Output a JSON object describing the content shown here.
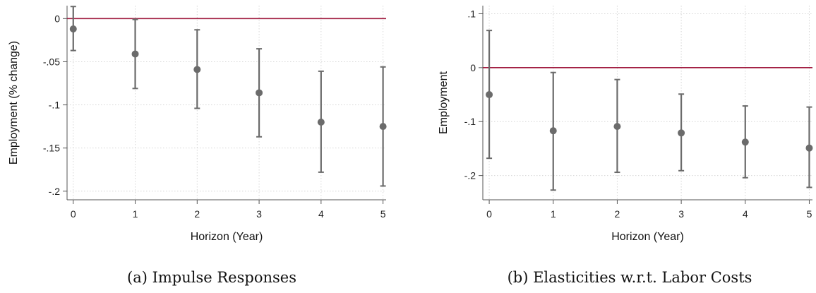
{
  "chart_data": [
    {
      "type": "scatter",
      "subtype": "point-estimates-with-confidence-intervals",
      "caption": "(a) Impulse Responses",
      "xlabel": "Horizon (Year)",
      "ylabel": "Employment (% change)",
      "x_ticks": [
        "0",
        "1",
        "2",
        "3",
        "4",
        "5"
      ],
      "y_ticks": [
        {
          "value": 0,
          "label": "0"
        },
        {
          "value": -0.05,
          "label": "-.05"
        },
        {
          "value": -0.1,
          "label": "-.1"
        },
        {
          "value": -0.15,
          "label": "-.15"
        },
        {
          "value": -0.2,
          "label": "-.2"
        }
      ],
      "xlim": [
        -0.1,
        5.05
      ],
      "ylim": [
        -0.21,
        0.015
      ],
      "grid": true,
      "reference_line": 0,
      "x": [
        0,
        1,
        2,
        3,
        4,
        5
      ],
      "y": [
        -0.012,
        -0.041,
        -0.059,
        -0.086,
        -0.12,
        -0.125
      ],
      "ci_low": [
        -0.037,
        -0.081,
        -0.104,
        -0.137,
        -0.178,
        -0.194
      ],
      "ci_high": [
        0.014,
        -0.001,
        -0.013,
        -0.035,
        -0.061,
        -0.056
      ]
    },
    {
      "type": "scatter",
      "subtype": "point-estimates-with-confidence-intervals",
      "caption": "(b) Elasticities w.r.t. Labor Costs",
      "xlabel": "Horizon (Year)",
      "ylabel": "Employment",
      "x_ticks": [
        "0",
        "1",
        "2",
        "3",
        "4",
        "5"
      ],
      "y_ticks": [
        {
          "value": 0.1,
          "label": ".1"
        },
        {
          "value": 0,
          "label": "0"
        },
        {
          "value": -0.1,
          "label": "-.1"
        },
        {
          "value": -0.2,
          "label": "-.2"
        }
      ],
      "xlim": [
        -0.1,
        5.05
      ],
      "ylim": [
        -0.245,
        0.115
      ],
      "grid": true,
      "reference_line": 0,
      "x": [
        0,
        1,
        2,
        3,
        4,
        5
      ],
      "y": [
        -0.05,
        -0.117,
        -0.109,
        -0.121,
        -0.138,
        -0.149
      ],
      "ci_low": [
        -0.168,
        -0.227,
        -0.194,
        -0.191,
        -0.204,
        -0.222
      ],
      "ci_high": [
        0.069,
        -0.009,
        -0.022,
        -0.049,
        -0.071,
        -0.073
      ]
    }
  ],
  "colors": {
    "marker": "#6b6b6b",
    "ci_line": "#6b6b6b",
    "reference_line": "#a01b3f",
    "grid": "#d6d6d6",
    "axis": "#555555"
  }
}
